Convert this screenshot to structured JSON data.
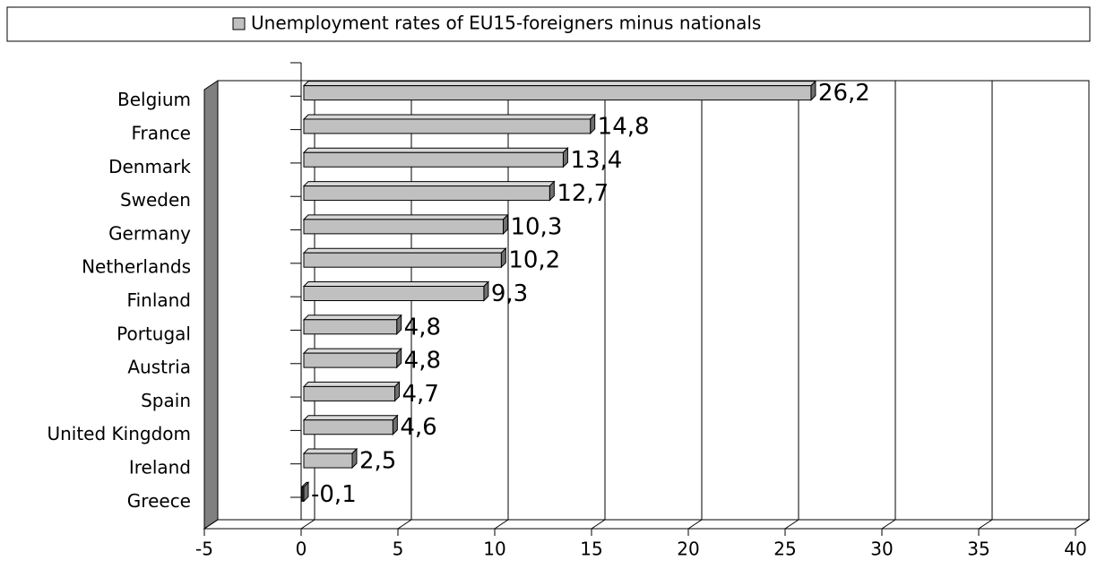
{
  "chart_data": {
    "type": "bar",
    "orientation": "horizontal",
    "categories": [
      "Belgium",
      "France",
      "Denmark",
      "Sweden",
      "Germany",
      "Netherlands",
      "Finland",
      "Portugal",
      "Austria",
      "Spain",
      "United Kingdom",
      "Ireland",
      "Greece"
    ],
    "series": [
      {
        "name": "Unemployment rates of EU15-foreigners minus nationals",
        "color": "#c0c0c0",
        "values": [
          26.2,
          14.8,
          13.4,
          12.7,
          10.3,
          10.2,
          9.3,
          4.8,
          4.8,
          4.7,
          4.6,
          2.5,
          -0.1
        ],
        "value_labels": [
          "26,2",
          "14,8",
          "13,4",
          "12,7",
          "10,3",
          "10,2",
          "9,3",
          "4,8",
          "4,8",
          "4,7",
          "4,6",
          "2,5",
          "-0,1"
        ]
      }
    ],
    "xlim": [
      -5,
      40
    ],
    "xticks": [
      -5,
      0,
      5,
      10,
      15,
      20,
      25,
      30,
      35,
      40
    ],
    "grid": true,
    "legend": "top"
  }
}
